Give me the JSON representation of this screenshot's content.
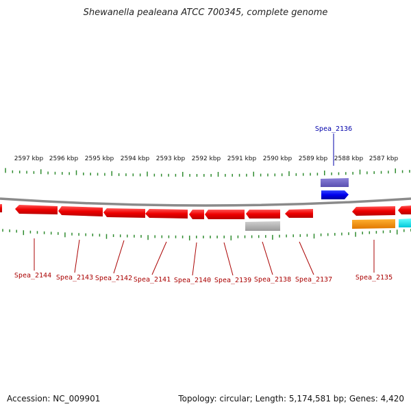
{
  "title": "Shewanella pealeana ATCC 700345, complete genome",
  "footer": {
    "accession": "Accession: NC_009901",
    "summary": "Topology: circular; Length: 5,174,581 bp; Genes: 4,420"
  },
  "colors": {
    "backbone": "#8a8a8a",
    "tick": "#2e8b2e",
    "forward_label": "#0000aa",
    "reverse_label": "#aa0000"
  },
  "kbp_labels": [
    "2597 kbp",
    "2596 kbp",
    "2595 kbp",
    "2594 kbp",
    "2593 kbp",
    "2592 kbp",
    "2591 kbp",
    "2590 kbp",
    "2589 kbp",
    "2588 kbp",
    "2587 kbp"
  ],
  "genes": [
    {
      "label": "Spea_2144",
      "strand": "reverse"
    },
    {
      "label": "Spea_2143",
      "strand": "reverse"
    },
    {
      "label": "Spea_2142",
      "strand": "reverse"
    },
    {
      "label": "Spea_2141",
      "strand": "reverse"
    },
    {
      "label": "Spea_2140",
      "strand": "reverse"
    },
    {
      "label": "Spea_2139",
      "strand": "reverse"
    },
    {
      "label": "Spea_2138",
      "strand": "reverse"
    },
    {
      "label": "Spea_2137",
      "strand": "reverse"
    },
    {
      "label": "Spea_2136",
      "strand": "forward"
    },
    {
      "label": "Spea_2135",
      "strand": "reverse"
    }
  ]
}
